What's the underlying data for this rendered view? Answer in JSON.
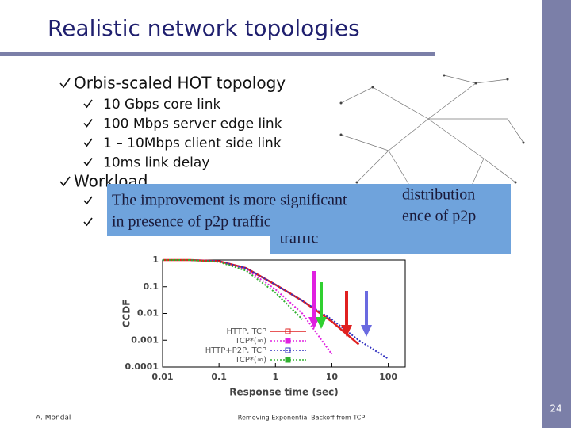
{
  "slide": {
    "title": "Realistic network topologies",
    "bullets": [
      {
        "text": "Orbis-scaled HOT topology",
        "sub": [
          "10 Gbps core link",
          "100 Mbps server edge link",
          "1 – 10Mbps client side link",
          "10ms link delay"
        ]
      },
      {
        "text": "Workload"
      }
    ],
    "callouts": {
      "back": [
        "distribution",
        "ence of p2p",
        "traffic"
      ],
      "front": [
        "The improvement is more significant",
        "in presence of p2p traffic"
      ]
    },
    "footer": {
      "author": "A. Mondal",
      "center": "Removing Exponential Backoff from TCP",
      "page": "24"
    }
  },
  "chart_data": {
    "type": "line",
    "x_label": "Response time (sec)",
    "y_label": "CCDF",
    "x": [
      0.01,
      0.03,
      0.1,
      0.3,
      1,
      3,
      10,
      30,
      100
    ],
    "xscale": "log",
    "yscale": "log",
    "xlim": [
      0.01,
      200
    ],
    "ylim": [
      0.0001,
      1
    ],
    "xticks": [
      0.01,
      0.1,
      1,
      10,
      100
    ],
    "yticks": [
      0.0001,
      0.001,
      0.01,
      0.1,
      1
    ],
    "series": [
      {
        "name": "HTTP, TCP",
        "color": "#e02020",
        "style": "solid",
        "values": [
          1,
          1,
          0.9,
          0.5,
          0.12,
          0.03,
          0.005,
          0.0007,
          null
        ]
      },
      {
        "name": "TCP*(∞)",
        "color": "#e020e0",
        "style": "dotted",
        "values": [
          1,
          1,
          0.9,
          0.45,
          0.08,
          0.01,
          0.0003,
          null,
          null
        ]
      },
      {
        "name": "HTTP+P2P, TCP",
        "color": "#3030c0",
        "style": "dotted",
        "values": [
          1,
          1,
          0.9,
          0.5,
          0.12,
          0.03,
          0.006,
          0.001,
          0.0002
        ]
      },
      {
        "name": "TCP*(∞)",
        "color": "#30b030",
        "style": "dotted",
        "values": [
          1,
          1,
          0.85,
          0.4,
          0.06,
          0.006,
          null,
          null,
          null
        ]
      }
    ]
  }
}
